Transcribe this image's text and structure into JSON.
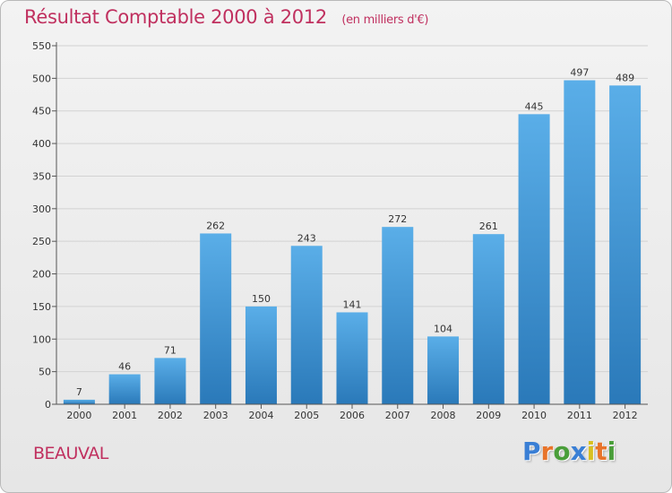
{
  "header": {
    "title": "Résultat Comptable 2000 à 2012",
    "subtitle": "(en milliers d'€)"
  },
  "footer": {
    "place": "BEAUVAL",
    "logo_letters": [
      "P",
      "r",
      "o",
      "x",
      "i",
      "t",
      "i"
    ],
    "logo_colors": [
      "#3a7fd5",
      "#e8742a",
      "#4a9e3a",
      "#3a7fd5",
      "#d8c020",
      "#e8742a",
      "#4a9e3a"
    ]
  },
  "colors": {
    "title": "#c0305f",
    "bar_top": "#5aaee8",
    "bar_bottom": "#2a79b9",
    "grid": "#d2d2d2",
    "axis": "#555555",
    "text": "#333333"
  },
  "chart_data": {
    "type": "bar",
    "title": "Résultat Comptable 2000 à 2012",
    "subtitle": "(en milliers d'€)",
    "xlabel": "",
    "ylabel": "",
    "categories": [
      "2000",
      "2001",
      "2002",
      "2003",
      "2004",
      "2005",
      "2006",
      "2007",
      "2008",
      "2009",
      "2010",
      "2011",
      "2012"
    ],
    "values": [
      7,
      46,
      71,
      262,
      150,
      243,
      141,
      272,
      104,
      261,
      445,
      497,
      489
    ],
    "ylim": [
      0,
      550
    ],
    "yticks": [
      0,
      50,
      100,
      150,
      200,
      250,
      300,
      350,
      400,
      450,
      500,
      550
    ],
    "grid": true,
    "data_labels": true
  }
}
